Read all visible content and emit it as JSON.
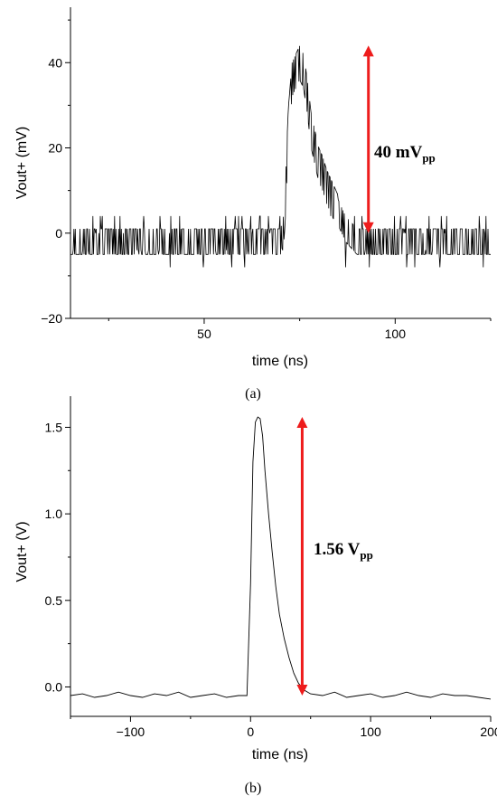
{
  "chart_data": [
    {
      "type": "line",
      "panel_label": "(a)",
      "xlabel": "time (ns)",
      "ylabel": "Vout+ (mV)",
      "xlim": [
        15,
        125
      ],
      "ylim": [
        -20,
        53
      ],
      "xticks": [
        50,
        100
      ],
      "xtick_labels": [
        "50",
        "100"
      ],
      "yticks": [
        -20,
        0,
        20,
        40
      ],
      "ytick_labels": [
        "−20",
        "0",
        "20",
        "40"
      ],
      "grid": false,
      "series": [
        {
          "color": "#000000",
          "noisy": true,
          "x": [
            15,
            20,
            30,
            40,
            50,
            60,
            65,
            70,
            71,
            72,
            73,
            74,
            75,
            76,
            77,
            78,
            79,
            80,
            81,
            82,
            83,
            84,
            85,
            86,
            87,
            88,
            90,
            95,
            100,
            110,
            120,
            125
          ],
          "y": [
            -2,
            -2,
            -2,
            -2,
            -2,
            -2,
            -2,
            -2,
            2,
            25,
            36,
            38,
            40,
            38,
            32,
            24,
            20,
            16,
            14,
            11,
            9,
            7,
            5,
            3,
            1,
            0,
            -2,
            -2,
            -2,
            -2,
            -2,
            -2
          ]
        }
      ],
      "annotation": {
        "text_main": "40 mV",
        "text_sub": "pp",
        "arrow_x": 93,
        "arrow_from": 0,
        "arrow_to": 44,
        "arrow_color": "#ee1c1c"
      }
    },
    {
      "type": "line",
      "panel_label": "(b)",
      "xlabel": "time (ns)",
      "ylabel": "Vout+ (V)",
      "xlim": [
        -150,
        200
      ],
      "ylim": [
        -0.17,
        1.68
      ],
      "xticks": [
        -100,
        0,
        100,
        200
      ],
      "xtick_labels": [
        "−100",
        "0",
        "100",
        "200"
      ],
      "yticks": [
        0.0,
        0.5,
        1.0,
        1.5
      ],
      "ytick_labels": [
        "0.0",
        "0.5",
        "1.0",
        "1.5"
      ],
      "grid": false,
      "series": [
        {
          "color": "#000000",
          "noisy": false,
          "x": [
            -150,
            -140,
            -130,
            -120,
            -110,
            -100,
            -90,
            -80,
            -70,
            -60,
            -50,
            -40,
            -30,
            -20,
            -10,
            -3,
            0,
            2,
            4,
            6,
            8,
            10,
            12,
            15,
            18,
            21,
            24,
            28,
            32,
            36,
            40,
            45,
            50,
            60,
            70,
            80,
            90,
            100,
            110,
            120,
            130,
            140,
            150,
            160,
            170,
            180,
            190,
            200
          ],
          "y": [
            -0.05,
            -0.04,
            -0.06,
            -0.05,
            -0.03,
            -0.05,
            -0.06,
            -0.04,
            -0.05,
            -0.03,
            -0.06,
            -0.05,
            -0.04,
            -0.06,
            -0.05,
            -0.05,
            0.6,
            1.3,
            1.53,
            1.56,
            1.55,
            1.45,
            1.25,
            1.0,
            0.78,
            0.58,
            0.42,
            0.28,
            0.17,
            0.08,
            0.02,
            -0.02,
            -0.04,
            -0.05,
            -0.03,
            -0.06,
            -0.05,
            -0.04,
            -0.06,
            -0.05,
            -0.03,
            -0.05,
            -0.06,
            -0.04,
            -0.05,
            -0.05,
            -0.06,
            -0.07
          ]
        }
      ],
      "annotation": {
        "text_main": "1.56 V",
        "text_sub": "pp",
        "arrow_x": 43,
        "arrow_from": -0.05,
        "arrow_to": 1.56,
        "arrow_color": "#ee1c1c"
      }
    }
  ]
}
